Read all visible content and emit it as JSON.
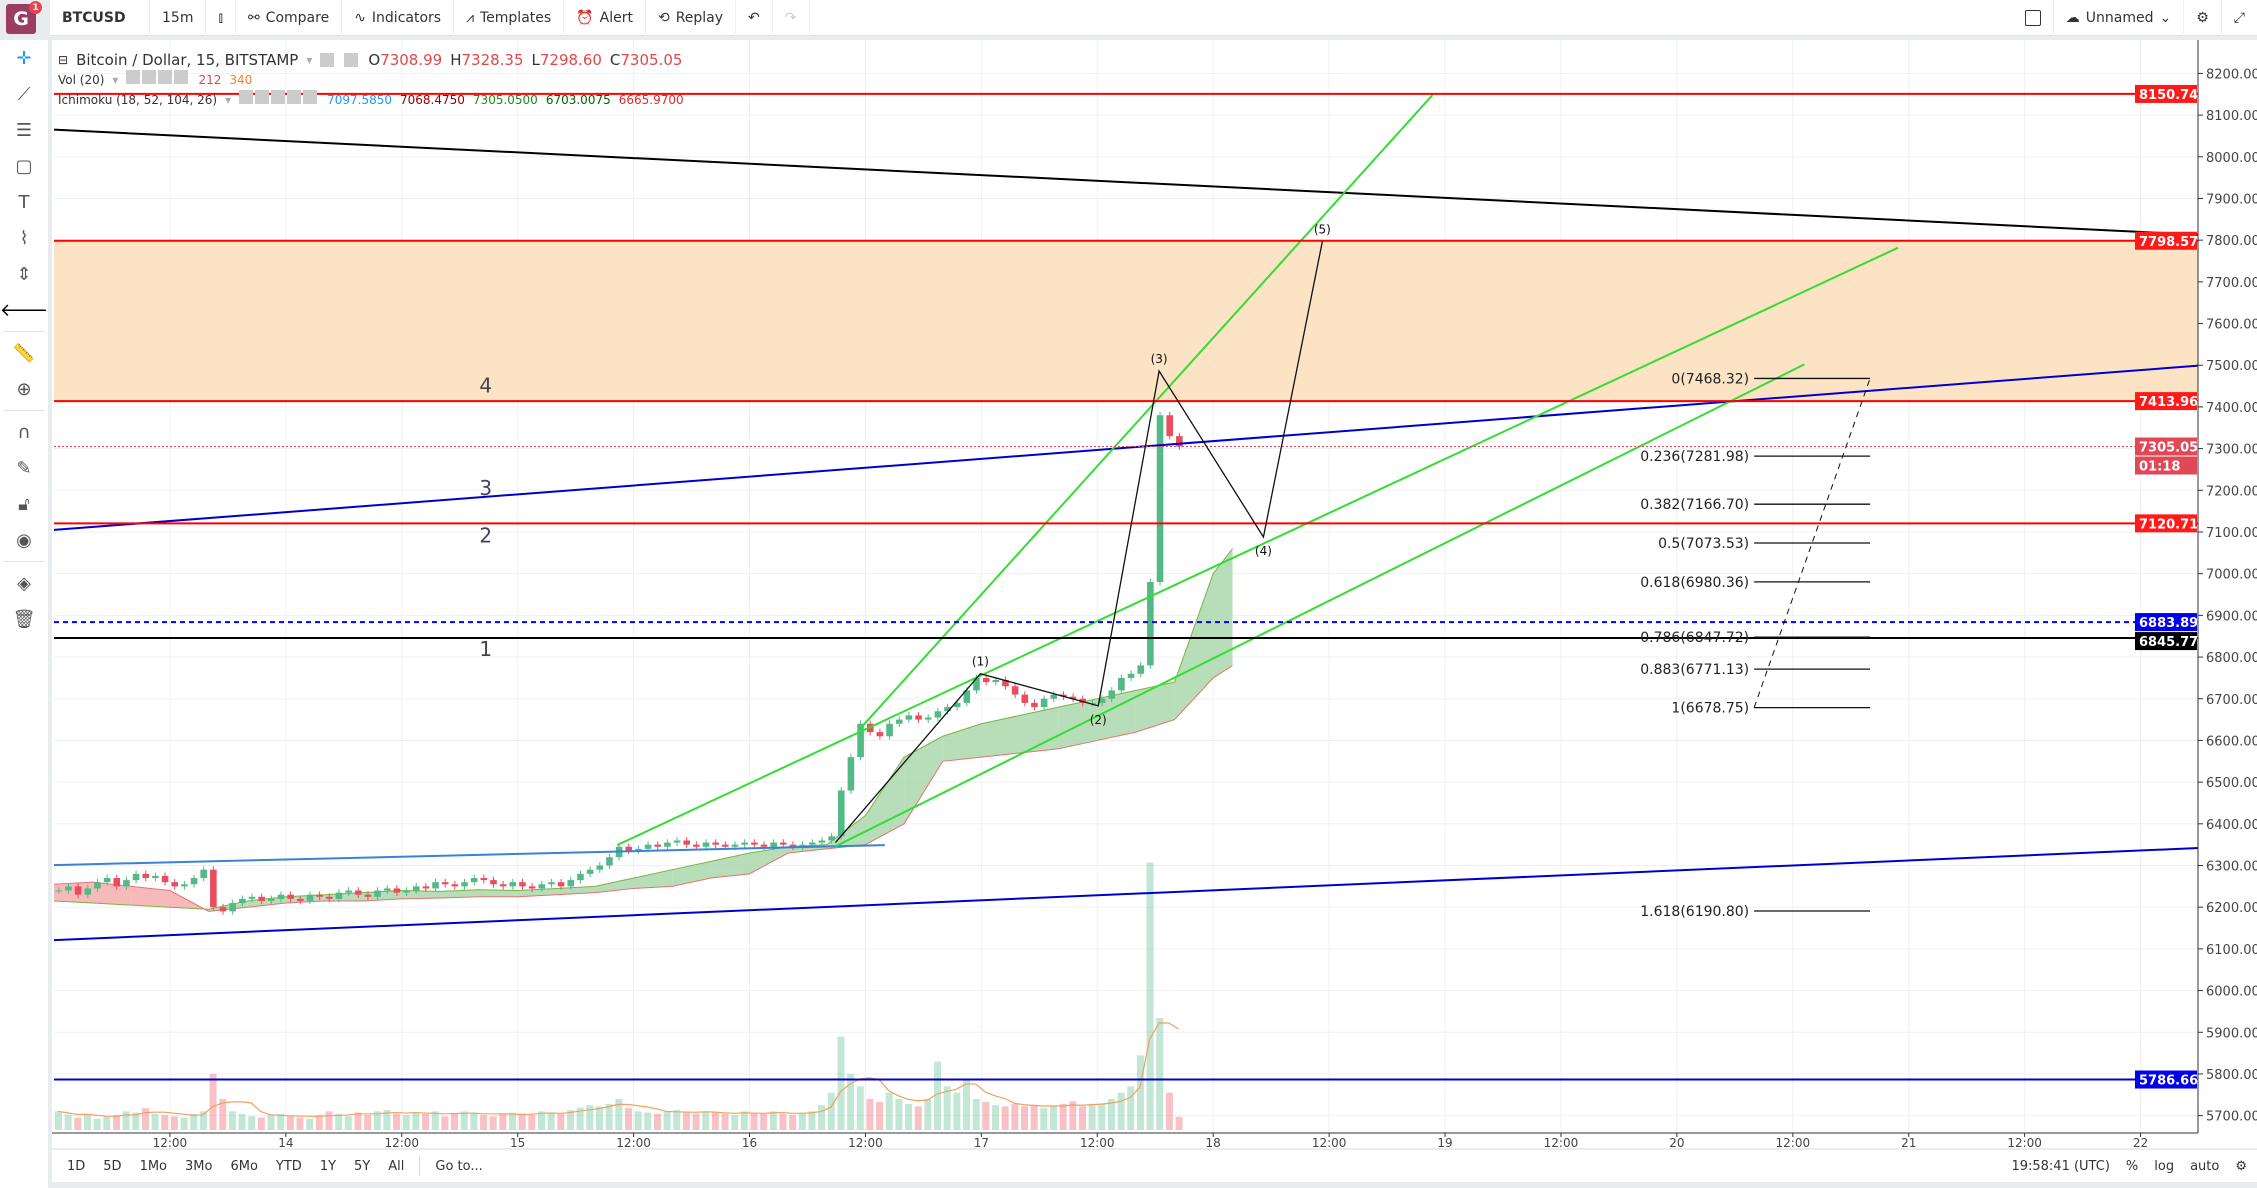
{
  "toolbar": {
    "logo": "G",
    "notif": "1",
    "symbol": "BTCUSD",
    "interval": "15m",
    "compare": "Compare",
    "indicators": "Indicators",
    "templates": "Templates",
    "alert": "Alert",
    "replay": "Replay",
    "layout_name": "Unnamed"
  },
  "legend": {
    "title": "Bitcoin / Dollar, 15, BITSTAMP",
    "o_label": "O",
    "o": "7308.99",
    "h_label": "H",
    "h": "7328.35",
    "l_label": "L",
    "l": "7298.60",
    "c_label": "C",
    "c": "7305.05",
    "vol_title": "Vol (20)",
    "vol": "212",
    "vol_ma": "340",
    "ichi_title": "Ichimoku (18, 52, 104, 26)",
    "ichi": [
      "7097.5850",
      "7068.4750",
      "7305.0500",
      "6703.0075",
      "6665.9700"
    ],
    "ichi_colors": [
      "#2196f3",
      "#8b0000",
      "#1b8a1b",
      "#006400",
      "#d32f2f"
    ]
  },
  "bottom": {
    "ranges": [
      "1D",
      "5D",
      "1Mo",
      "3Mo",
      "6Mo",
      "YTD",
      "1Y",
      "5Y",
      "All"
    ],
    "goto": "Go to...",
    "clock": "19:58:41 (UTC)",
    "percent": "%",
    "log": "log",
    "auto": "auto"
  },
  "colors": {
    "up": "#53b987",
    "down": "#eb4d5c",
    "cloud_up": "#a5d6a7",
    "cloud_down": "#f4a9a9",
    "zone": "#fbe3c4"
  },
  "chart_data": {
    "type": "candlestick",
    "ylim": [
      5650,
      8250
    ],
    "y_ticks": [
      5700,
      5800,
      5900,
      6000,
      6100,
      6200,
      6300,
      6400,
      6500,
      6600,
      6700,
      6800,
      6900,
      7000,
      7100,
      7200,
      7300,
      7400,
      7500,
      7600,
      7700,
      7800,
      7900,
      8000,
      8100,
      8200
    ],
    "x_start": "13 00:00",
    "x_end": "22 06:00",
    "x_ticks": [
      "12:00",
      "14",
      "12:00",
      "15",
      "12:00",
      "16",
      "12:00",
      "17",
      "12:00",
      "18",
      "12:00",
      "19",
      "12:00",
      "20",
      "12:00",
      "21",
      "12:00",
      "22"
    ],
    "hourly_close_start": "13 00:00",
    "hourly_close": [
      6240,
      6250,
      6230,
      6245,
      6260,
      6270,
      6250,
      6265,
      6280,
      6270,
      6275,
      6260,
      6250,
      6255,
      6270,
      6290,
      6200,
      6190,
      6210,
      6220,
      6225,
      6215,
      6220,
      6230,
      6220,
      6215,
      6230,
      6225,
      6220,
      6235,
      6240,
      6230,
      6225,
      6240,
      6245,
      6235,
      6240,
      6250,
      6245,
      6260,
      6255,
      6250,
      6260,
      6270,
      6265,
      6255,
      6250,
      6260,
      6250,
      6245,
      6255,
      6260,
      6250,
      6265,
      6280,
      6290,
      6300,
      6320,
      6345,
      6335,
      6340,
      6350,
      6345,
      6355,
      6360,
      6350,
      6345,
      6355,
      6350,
      6345,
      6350,
      6355,
      6350,
      6345,
      6355,
      6350,
      6345,
      6350,
      6355,
      6360,
      6370,
      6480,
      6560,
      6640,
      6620,
      6610,
      6640,
      6650,
      6660,
      6650,
      6655,
      6670,
      6680,
      6690,
      6720,
      6750,
      6740,
      6745,
      6730,
      6710,
      6690,
      6680,
      6700,
      6710,
      6705,
      6700,
      6690,
      6690,
      6700,
      6720,
      6750,
      6760,
      6780,
      6980,
      7380,
      7330,
      7305
    ],
    "hourly_volume": [
      300,
      250,
      200,
      260,
      180,
      220,
      240,
      300,
      280,
      350,
      260,
      240,
      220,
      200,
      260,
      300,
      900,
      500,
      300,
      260,
      220,
      200,
      240,
      260,
      220,
      200,
      180,
      240,
      300,
      260,
      220,
      280,
      240,
      300,
      320,
      260,
      240,
      280,
      260,
      300,
      220,
      260,
      300,
      280,
      240,
      220,
      260,
      280,
      260,
      240,
      300,
      280,
      260,
      320,
      360,
      400,
      380,
      420,
      500,
      350,
      300,
      280,
      260,
      300,
      320,
      280,
      260,
      300,
      280,
      260,
      240,
      300,
      280,
      260,
      300,
      260,
      240,
      280,
      300,
      400,
      600,
      1500,
      900,
      700,
      500,
      450,
      600,
      500,
      420,
      380,
      500,
      1100,
      700,
      600,
      800,
      500,
      450,
      400,
      380,
      420,
      380,
      400,
      350,
      380,
      420,
      460,
      380,
      400,
      420,
      500,
      600,
      700,
      1200,
      4300,
      1800,
      600,
      212
    ],
    "cloud_times": [
      "13 00:00",
      "13 04:00",
      "13 08:00",
      "13 12:00",
      "13 16:00",
      "13 20:00",
      "14 00:00",
      "14 04:00",
      "14 08:00",
      "14 12:00",
      "14 16:00",
      "14 20:00",
      "15 00:00",
      "15 04:00",
      "15 08:00",
      "15 12:00",
      "15 16:00",
      "15 20:00",
      "16 00:00",
      "16 04:00",
      "16 08:00",
      "16 12:00",
      "16 16:00",
      "16 20:00",
      "17 00:00",
      "17 04:00",
      "17 08:00",
      "17 12:00",
      "17 16:00",
      "17 20:00",
      "18 00:00",
      "18 02:00"
    ],
    "span_a": [
      6215,
      6210,
      6205,
      6200,
      6195,
      6215,
      6225,
      6230,
      6235,
      6240,
      6238,
      6242,
      6240,
      6245,
      6250,
      6270,
      6290,
      6310,
      6330,
      6345,
      6350,
      6420,
      6560,
      6610,
      6640,
      6660,
      6680,
      6700,
      6720,
      6740,
      7000,
      7060
    ],
    "span_b": [
      6255,
      6260,
      6250,
      6240,
      6190,
      6200,
      6210,
      6215,
      6215,
      6220,
      6222,
      6225,
      6225,
      6230,
      6235,
      6245,
      6250,
      6270,
      6280,
      6330,
      6340,
      6350,
      6400,
      6550,
      6560,
      6570,
      6580,
      6600,
      6620,
      6650,
      6750,
      6780
    ],
    "horizontal_levels": [
      {
        "price": 8150.74,
        "label": "8150.74",
        "color": "#ff0000"
      },
      {
        "price": 7798.57,
        "label": "7798.57",
        "color": "#ff0000"
      },
      {
        "price": 7413.96,
        "label": "7413.96",
        "color": "#ff0000"
      },
      {
        "price": 7120.71,
        "label": "7120.71",
        "color": "#ff0000"
      },
      {
        "price": 6883.89,
        "label": "6883.89",
        "color": "#0000ff",
        "dashed": true
      },
      {
        "price": 6845.77,
        "label": "6845.77",
        "color": "#000000"
      },
      {
        "price": 5786.66,
        "label": "5786.66",
        "color": "#0000cc"
      }
    ],
    "last_price": {
      "price": 7305.05,
      "label": "7305.05",
      "countdown": "01:18",
      "color": "#e04858"
    },
    "zone": [
      7413.96,
      7798.57
    ],
    "trend_lines": [
      {
        "from": [
          "13 00:00",
          8065
        ],
        "to": [
          "22 06:00",
          7813
        ],
        "color": "#000000"
      },
      {
        "from": [
          "13 00:00",
          7105
        ],
        "to": [
          "22 06:00",
          7499
        ],
        "color": "#0000cc"
      },
      {
        "from": [
          "13 00:00",
          6121
        ],
        "to": [
          "22 06:00",
          6342
        ],
        "color": "#0000cc"
      },
      {
        "from": [
          "13 00:00",
          6301
        ],
        "to": [
          "16 14:00",
          6349
        ],
        "color": "#3b82d6"
      },
      {
        "from": [
          "16 11:36",
          6632
        ],
        "to": [
          "18 22:42",
          8148
        ],
        "color": "#33dd33"
      },
      {
        "from": [
          "15 10:18",
          6349
        ],
        "to": [
          "20 22:54",
          7782
        ],
        "color": "#33dd33"
      },
      {
        "from": [
          "16 08:54",
          6346
        ],
        "to": [
          "20 13:12",
          7502
        ],
        "color": "#33dd33"
      }
    ],
    "elliott_wave": [
      {
        "t": "16 08:54",
        "p": 6355,
        "label": ""
      },
      {
        "t": "16 23:54",
        "p": 6760,
        "label": "(1)"
      },
      {
        "t": "17 12:06",
        "p": 6683,
        "label": "(2)"
      },
      {
        "t": "17 18:24",
        "p": 7486,
        "label": "(3)"
      },
      {
        "t": "18 05:12",
        "p": 7088,
        "label": "(4)"
      },
      {
        "t": "18 11:18",
        "p": 7797,
        "label": "(5)"
      }
    ],
    "wave_numbers": [
      {
        "t": "14 20:42",
        "p": 7451,
        "label": "4"
      },
      {
        "t": "14 20:42",
        "p": 7205,
        "label": "3"
      },
      {
        "t": "14 20:42",
        "p": 7092,
        "label": "2"
      },
      {
        "t": "14 20:42",
        "p": 6819,
        "label": "1"
      }
    ],
    "fib": {
      "from": "20 08:00",
      "to": "20 20:00",
      "levels": [
        {
          "p": 7468.32,
          "label": "0(7468.32)"
        },
        {
          "p": 7281.98,
          "label": "0.236(7281.98)"
        },
        {
          "p": 7166.7,
          "label": "0.382(7166.70)"
        },
        {
          "p": 7073.53,
          "label": "0.5(7073.53)"
        },
        {
          "p": 6980.36,
          "label": "0.618(6980.36)"
        },
        {
          "p": 6847.72,
          "label": "0.786(6847.72)"
        },
        {
          "p": 6771.13,
          "label": "0.883(6771.13)"
        },
        {
          "p": 6678.75,
          "label": "1(6678.75)"
        },
        {
          "p": 6190.8,
          "label": "1.618(6190.80)"
        }
      ]
    }
  }
}
